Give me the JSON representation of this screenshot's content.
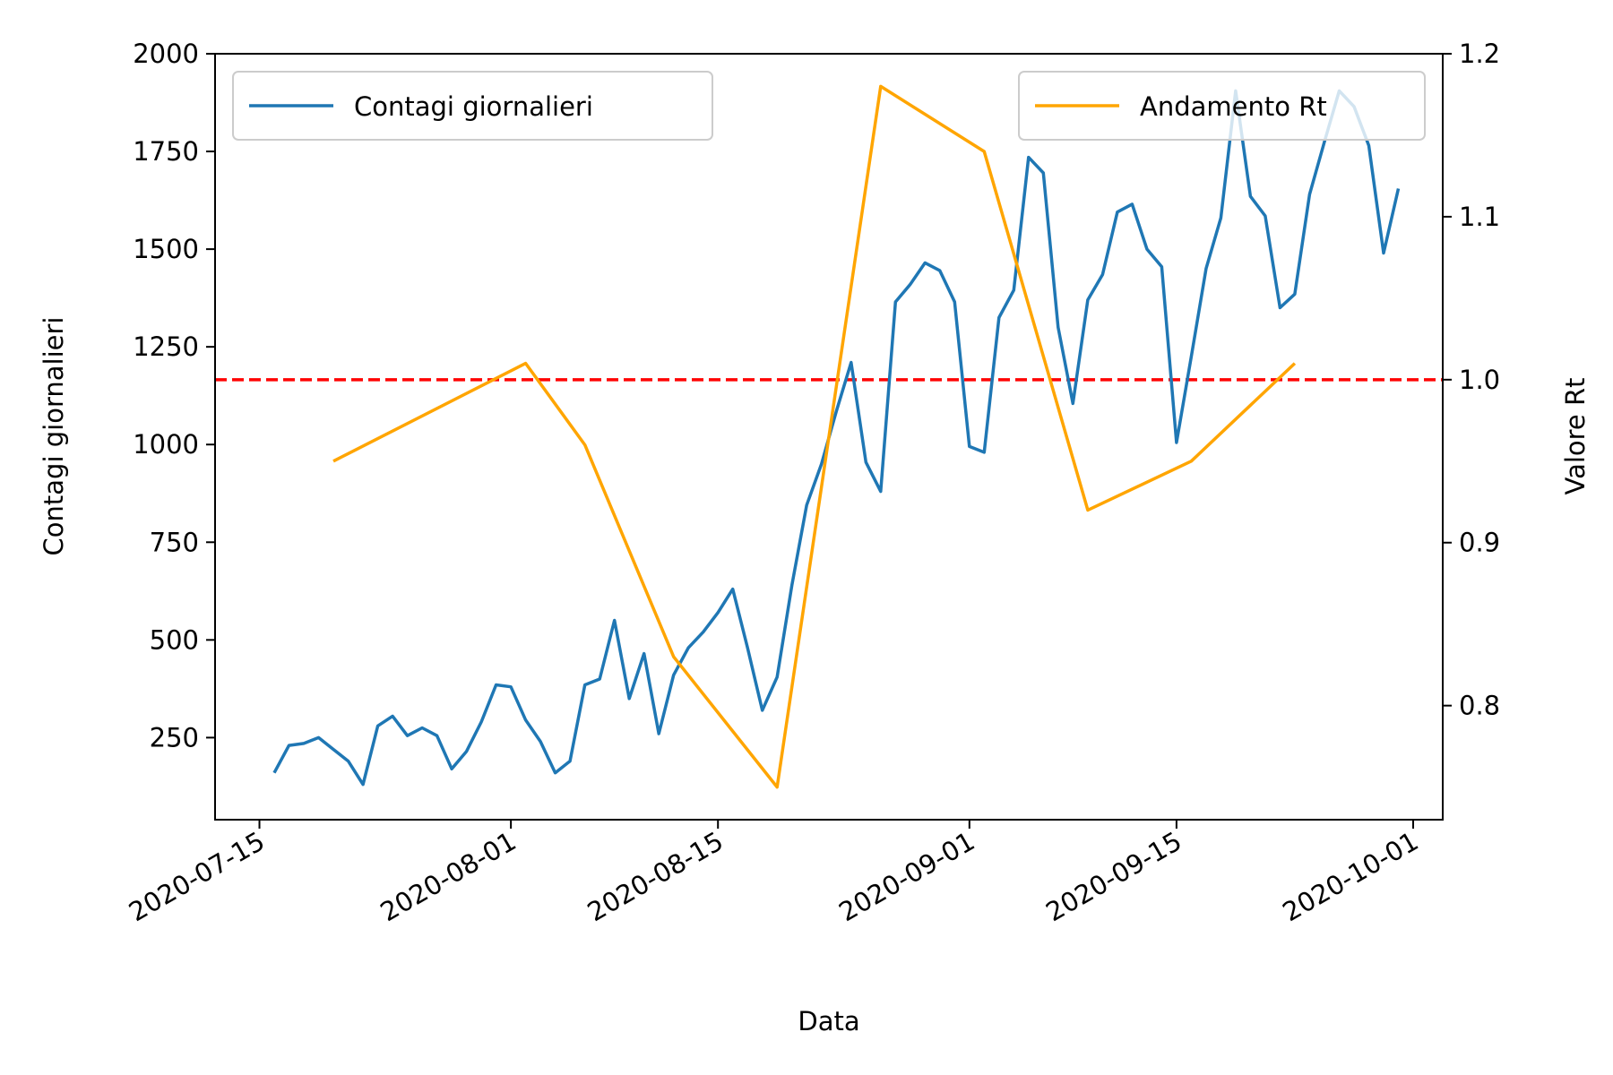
{
  "chart_data": {
    "type": "line",
    "xlabel": "Data",
    "ylabel": "Contagi giornalieri",
    "y2label": "Valore Rt",
    "x_axis": {
      "type": "date",
      "range": [
        "2020-07-12",
        "2020-10-03"
      ],
      "ticks": [
        "2020-07-15",
        "2020-08-01",
        "2020-08-15",
        "2020-09-01",
        "2020-09-15",
        "2020-10-01"
      ]
    },
    "y_axis": {
      "range": [
        40,
        2000
      ],
      "ticks": [
        250,
        500,
        750,
        1000,
        1250,
        1500,
        1750,
        2000
      ]
    },
    "y2_axis": {
      "range": [
        0.73,
        1.2
      ],
      "ticks": [
        0.8,
        0.9,
        1.0,
        1.1,
        1.2
      ],
      "tick_labels": [
        "0.8",
        "0.9",
        "1.0",
        "1.1",
        "1.2"
      ]
    },
    "grid": false,
    "series": [
      {
        "name": "Contagi giornalieri",
        "axis": "left",
        "color": "#1f77b4",
        "legend_position": "top-left",
        "x": [
          "2020-07-16",
          "2020-07-17",
          "2020-07-18",
          "2020-07-19",
          "2020-07-20",
          "2020-07-21",
          "2020-07-22",
          "2020-07-23",
          "2020-07-24",
          "2020-07-25",
          "2020-07-26",
          "2020-07-27",
          "2020-07-28",
          "2020-07-29",
          "2020-07-30",
          "2020-07-31",
          "2020-08-01",
          "2020-08-02",
          "2020-08-03",
          "2020-08-04",
          "2020-08-05",
          "2020-08-06",
          "2020-08-07",
          "2020-08-08",
          "2020-08-09",
          "2020-08-10",
          "2020-08-11",
          "2020-08-12",
          "2020-08-13",
          "2020-08-14",
          "2020-08-15",
          "2020-08-16",
          "2020-08-17",
          "2020-08-18",
          "2020-08-19",
          "2020-08-20",
          "2020-08-21",
          "2020-08-22",
          "2020-08-23",
          "2020-08-24",
          "2020-08-25",
          "2020-08-26",
          "2020-08-27",
          "2020-08-28",
          "2020-08-29",
          "2020-08-30",
          "2020-08-31",
          "2020-09-01",
          "2020-09-02",
          "2020-09-03",
          "2020-09-04",
          "2020-09-05",
          "2020-09-06",
          "2020-09-07",
          "2020-09-08",
          "2020-09-09",
          "2020-09-10",
          "2020-09-11",
          "2020-09-12",
          "2020-09-13",
          "2020-09-14",
          "2020-09-15",
          "2020-09-16",
          "2020-09-17",
          "2020-09-18",
          "2020-09-19",
          "2020-09-20",
          "2020-09-21",
          "2020-09-22",
          "2020-09-23",
          "2020-09-24",
          "2020-09-25",
          "2020-09-26",
          "2020-09-27",
          "2020-09-28",
          "2020-09-29",
          "2020-09-30"
        ],
        "values": [
          160,
          230,
          235,
          250,
          220,
          190,
          130,
          280,
          305,
          255,
          275,
          255,
          170,
          215,
          290,
          385,
          380,
          295,
          240,
          160,
          190,
          385,
          400,
          550,
          350,
          465,
          260,
          410,
          480,
          520,
          570,
          630,
          480,
          320,
          405,
          640,
          845,
          950,
          1085,
          1210,
          955,
          880,
          1365,
          1410,
          1465,
          1445,
          1365,
          995,
          980,
          1325,
          1395,
          1735,
          1695,
          1300,
          1105,
          1370,
          1435,
          1595,
          1615,
          1500,
          1455,
          1005,
          1225,
          1450,
          1580,
          1905,
          1635,
          1585,
          1350,
          1385,
          1640,
          1775,
          1905,
          1865,
          1765,
          1490,
          1655
        ]
      },
      {
        "name": "Andamento Rt",
        "axis": "right",
        "color": "#ffa500",
        "legend_position": "top-right",
        "x": [
          "2020-07-20",
          "2020-08-02",
          "2020-08-06",
          "2020-08-12",
          "2020-08-19",
          "2020-08-26",
          "2020-09-02",
          "2020-09-09",
          "2020-09-16",
          "2020-09-23"
        ],
        "values": [
          0.95,
          1.01,
          0.96,
          0.83,
          0.75,
          1.18,
          1.14,
          0.92,
          0.95,
          1.01
        ]
      }
    ],
    "reference_line": {
      "axis": "right",
      "value": 1.0,
      "color": "#ff0000",
      "style": "dashed",
      "orientation": "horizontal"
    }
  }
}
